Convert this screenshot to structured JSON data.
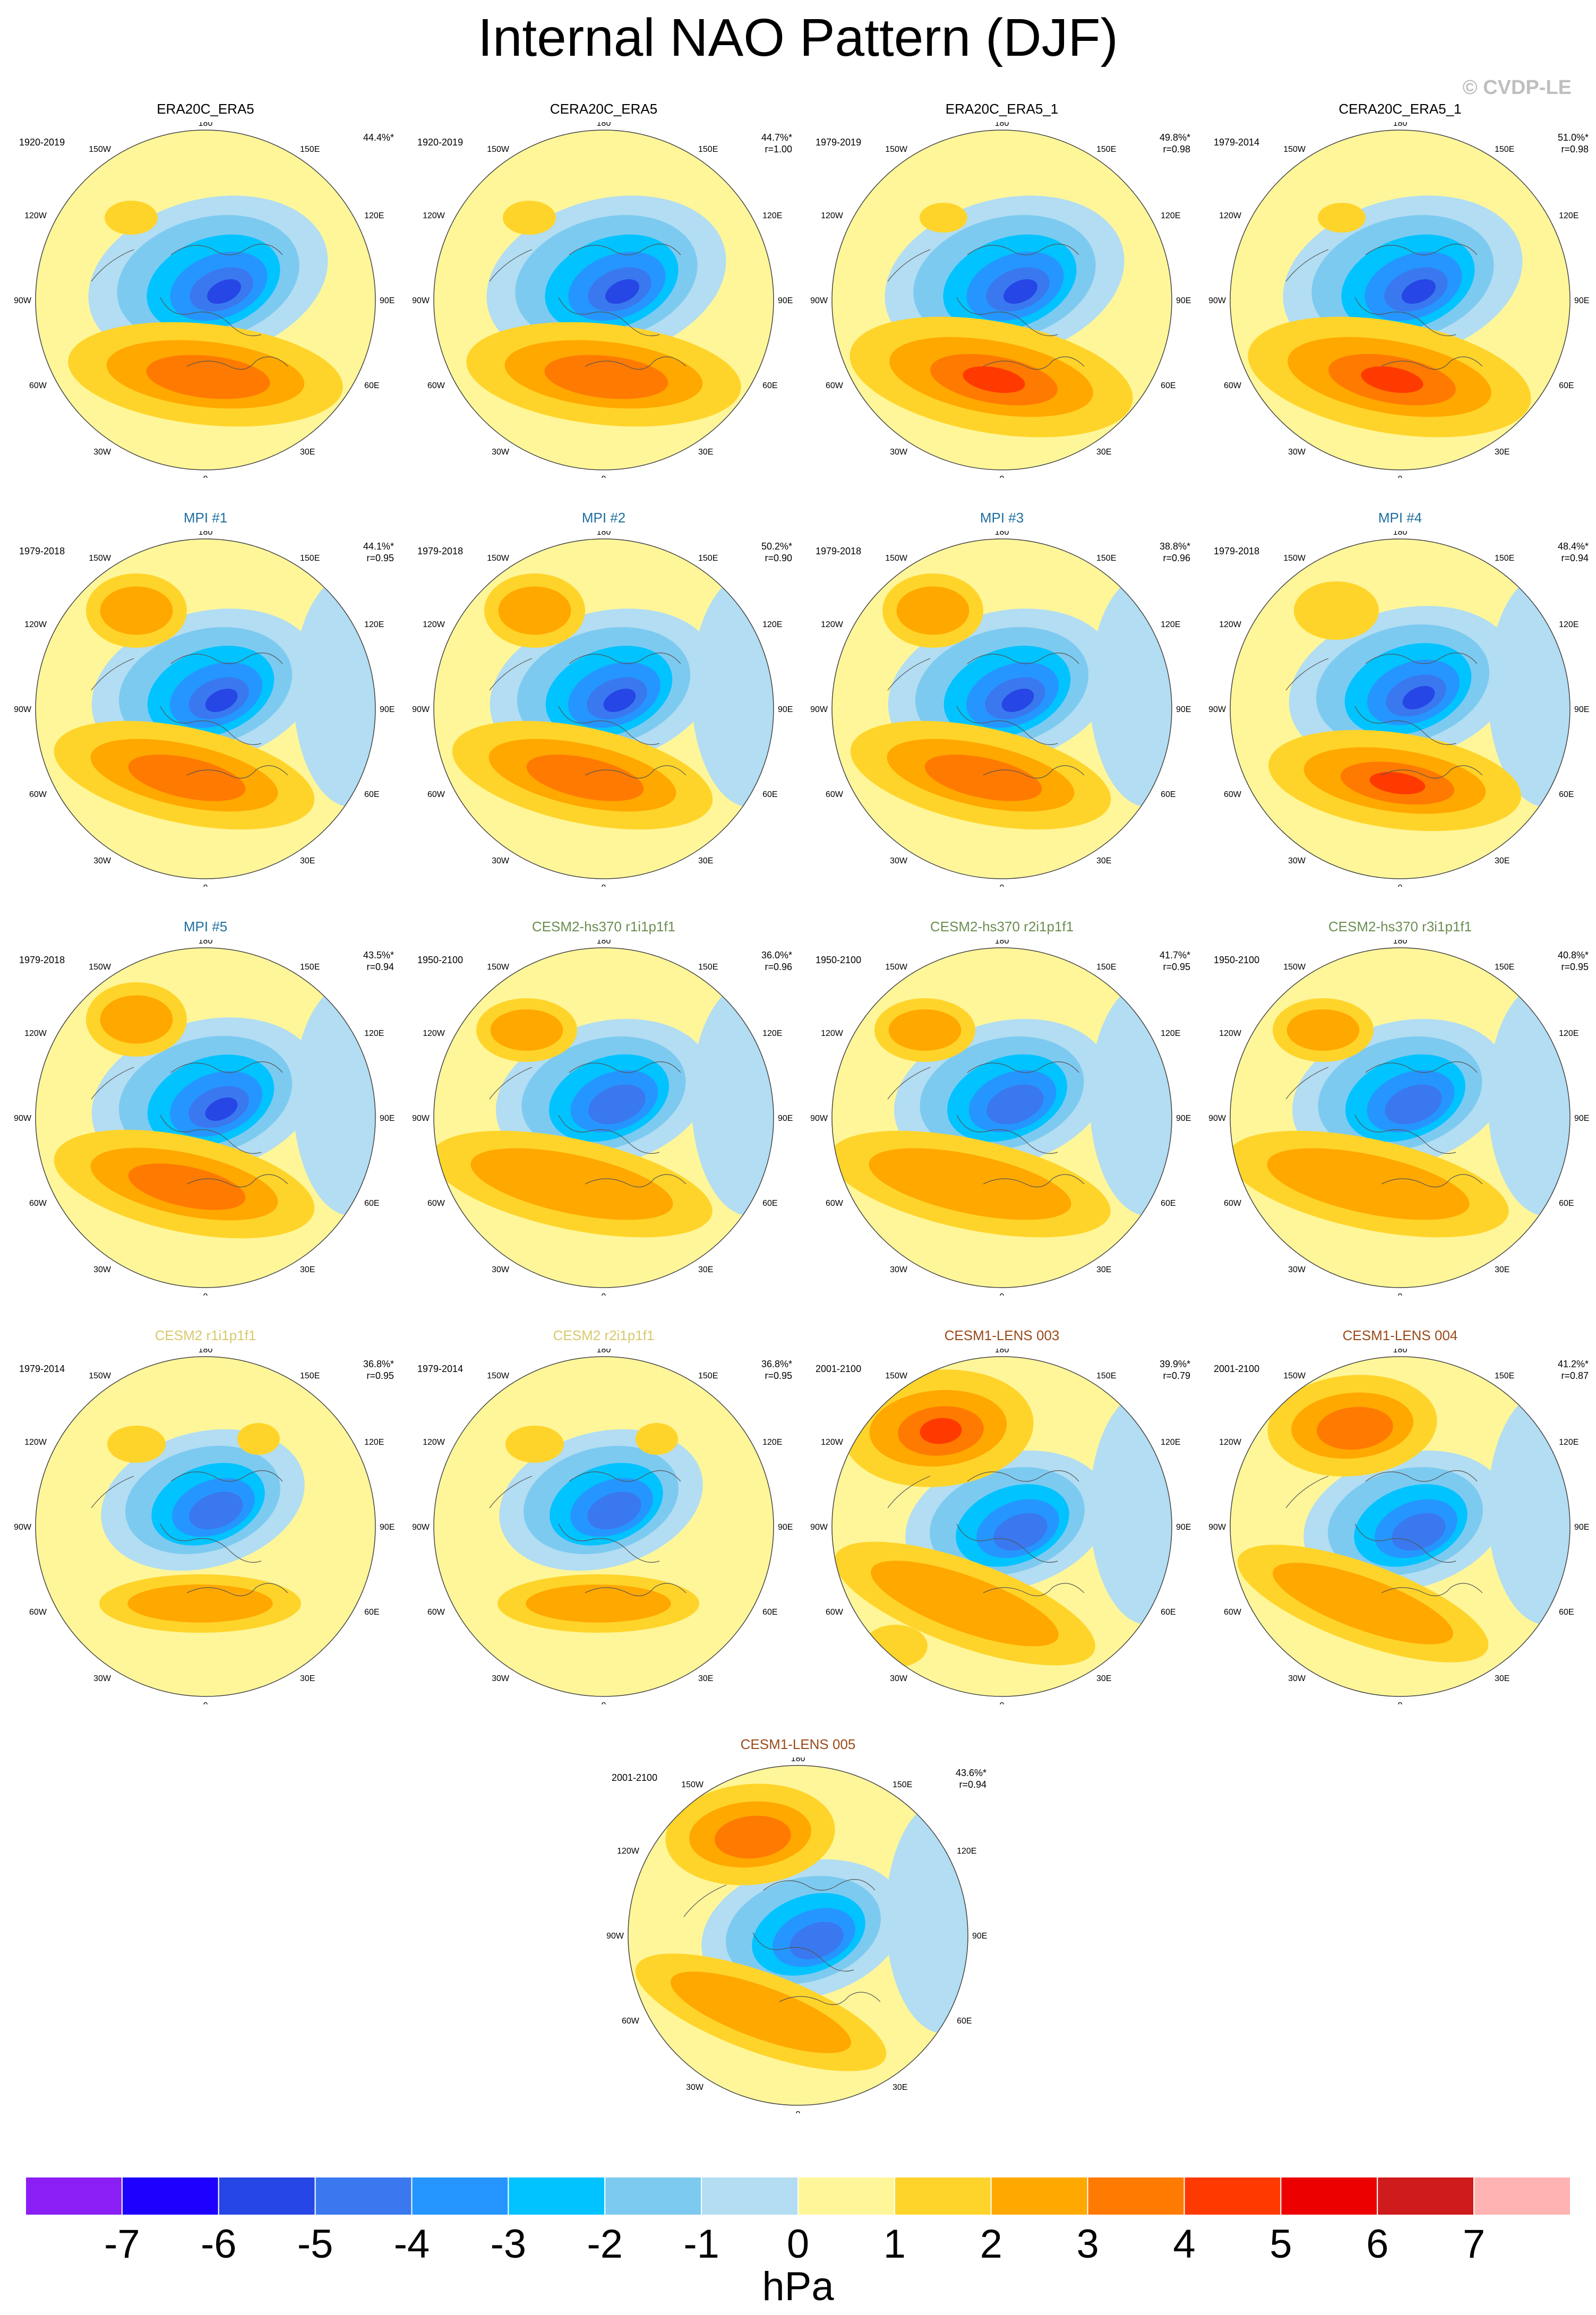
{
  "figure": {
    "title": "Internal NAO Pattern (DJF)",
    "copyright": "© CVDP-LE"
  },
  "colors": {
    "title_black": "#000000",
    "title_teal": "#1f6f9f",
    "title_olive": "#6b8e52",
    "title_khaki": "#d9c96b",
    "title_brown": "#9a4a1a"
  },
  "longitude_labels": [
    "180",
    "150E",
    "120E",
    "90E",
    "60E",
    "30E",
    "0",
    "30W",
    "60W",
    "90W",
    "120W",
    "150W"
  ],
  "panels": [
    {
      "title": "ERA20C_ERA5",
      "title_color": "#000000",
      "period": "1920-2019",
      "stats": "44.4%*",
      "pattern": "obs"
    },
    {
      "title": "CERA20C_ERA5",
      "title_color": "#000000",
      "period": "1920-2019",
      "stats": "44.7%*\nr=1.00",
      "pattern": "obs"
    },
    {
      "title": "ERA20C_ERA5_1",
      "title_color": "#000000",
      "period": "1979-2019",
      "stats": "49.8%*\nr=0.98",
      "pattern": "obs_strong"
    },
    {
      "title": "CERA20C_ERA5_1",
      "title_color": "#000000",
      "period": "1979-2014",
      "stats": "51.0%*\nr=0.98",
      "pattern": "obs_strong"
    },
    {
      "title": "MPI #1",
      "title_color": "#1f6f9f",
      "period": "1979-2018",
      "stats": "44.1%*\nr=0.95",
      "pattern": "mpi"
    },
    {
      "title": "MPI #2",
      "title_color": "#1f6f9f",
      "period": "1979-2018",
      "stats": "50.2%*\nr=0.90",
      "pattern": "mpi"
    },
    {
      "title": "MPI #3",
      "title_color": "#1f6f9f",
      "period": "1979-2018",
      "stats": "38.8%*\nr=0.96",
      "pattern": "mpi"
    },
    {
      "title": "MPI #4",
      "title_color": "#1f6f9f",
      "period": "1979-2018",
      "stats": "48.4%*\nr=0.94",
      "pattern": "mpi_strong"
    },
    {
      "title": "MPI #5",
      "title_color": "#1f6f9f",
      "period": "1979-2018",
      "stats": "43.5%*\nr=0.94",
      "pattern": "mpi"
    },
    {
      "title": "CESM2-hs370 r1i1p1f1",
      "title_color": "#6b8e52",
      "period": "1950-2100",
      "stats": "36.0%*\nr=0.96",
      "pattern": "cesm2hs"
    },
    {
      "title": "CESM2-hs370 r2i1p1f1",
      "title_color": "#6b8e52",
      "period": "1950-2100",
      "stats": "41.7%*\nr=0.95",
      "pattern": "cesm2hs"
    },
    {
      "title": "CESM2-hs370 r3i1p1f1",
      "title_color": "#6b8e52",
      "period": "1950-2100",
      "stats": "40.8%*\nr=0.95",
      "pattern": "cesm2hs"
    },
    {
      "title": "CESM2 r1i1p1f1",
      "title_color": "#d9c96b",
      "period": "1979-2014",
      "stats": "36.8%*\nr=0.95",
      "pattern": "cesm2"
    },
    {
      "title": "CESM2 r2i1p1f1",
      "title_color": "#d9c96b",
      "period": "1979-2014",
      "stats": "36.8%*\nr=0.95",
      "pattern": "cesm2"
    },
    {
      "title": "CESM1-LENS 003",
      "title_color": "#9a4a1a",
      "period": "2001-2100",
      "stats": "39.9%*\nr=0.79",
      "pattern": "lens_strong"
    },
    {
      "title": "CESM1-LENS 004",
      "title_color": "#9a4a1a",
      "period": "2001-2100",
      "stats": "41.2%*\nr=0.87",
      "pattern": "lens"
    },
    {
      "title": "CESM1-LENS 005",
      "title_color": "#9a4a1a",
      "period": "2001-2100",
      "stats": "43.6%*\nr=0.94",
      "pattern": "lens"
    }
  ],
  "colorbar": {
    "units": "hPa",
    "tick_labels": [
      "-7",
      "-6",
      "-5",
      "-4",
      "-3",
      "-2",
      "-1",
      "0",
      "1",
      "2",
      "3",
      "4",
      "5",
      "6",
      "7"
    ],
    "colors": [
      "#8a1ef5",
      "#1e00ff",
      "#2646e6",
      "#3a78ef",
      "#2596ff",
      "#00c3ff",
      "#7dcaf0",
      "#b2ddf2",
      "#fff69a",
      "#ffd42a",
      "#ffa800",
      "#ff7a00",
      "#ff3a00",
      "#ec0000",
      "#cf1b1b",
      "#ffb3b3"
    ]
  }
}
